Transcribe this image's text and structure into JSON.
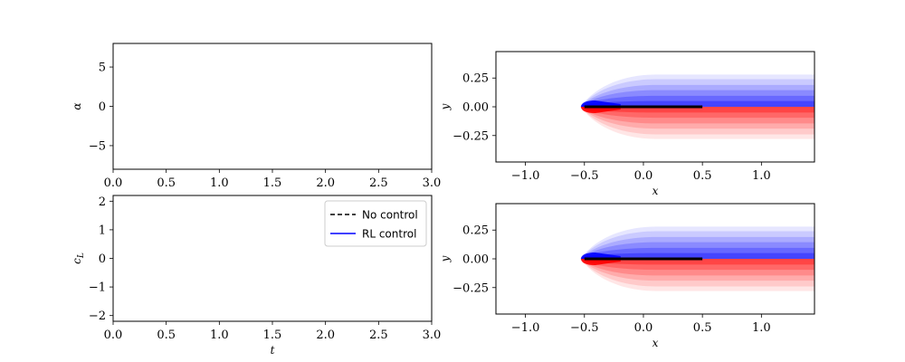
{
  "chart_data": [
    {
      "id": "alpha_plot",
      "type": "line",
      "xlabel": "",
      "ylabel": "α",
      "xlim": [
        0,
        3
      ],
      "ylim": [
        -8,
        8
      ],
      "xticks": [
        0,
        0.5,
        1,
        1.5,
        2,
        2.5,
        3
      ],
      "xtick_labels": [
        "0.0",
        "0.5",
        "1.0",
        "1.5",
        "2.0",
        "2.5",
        "3.0"
      ],
      "yticks": [
        5,
        0,
        -5
      ],
      "ytick_labels": [
        "5",
        "0",
        "−5"
      ],
      "series": []
    },
    {
      "id": "cl_plot",
      "type": "line",
      "xlabel": "t",
      "ylabel": "c_L",
      "xlim": [
        0,
        3
      ],
      "ylim": [
        -2.2,
        2.2
      ],
      "xticks": [
        0,
        0.5,
        1,
        1.5,
        2,
        2.5,
        3
      ],
      "xtick_labels": [
        "0.0",
        "0.5",
        "1.0",
        "1.5",
        "2.0",
        "2.5",
        "3.0"
      ],
      "yticks": [
        2,
        1,
        0,
        -1,
        -2
      ],
      "ytick_labels": [
        "2",
        "1",
        "0",
        "−1",
        "−2"
      ],
      "legend": {
        "location": "upper-right",
        "entries": [
          {
            "label": "No control",
            "color": "#000000",
            "style": "dashed"
          },
          {
            "label": "RL control",
            "color": "#0000ff",
            "style": "solid"
          }
        ]
      },
      "series": []
    },
    {
      "id": "field_no_control",
      "type": "heatmap",
      "xlabel": "x",
      "ylabel": "y",
      "xlim": [
        -1.25,
        1.45
      ],
      "ylim": [
        -0.48,
        0.48
      ],
      "xticks": [
        -1,
        -0.5,
        0,
        0.5,
        1
      ],
      "xtick_labels": [
        "−1.0",
        "−0.5",
        "0.0",
        "0.5",
        "1.0"
      ],
      "yticks": [
        0.25,
        0,
        -0.25
      ],
      "ytick_labels": [
        "0.25",
        "0.00",
        "−0.25"
      ],
      "plate": {
        "x_start": -0.5,
        "x_end": 0.5,
        "y": 0,
        "color": "#000000"
      },
      "colormap": [
        "#0000ff",
        "#ffffff",
        "#ff0000"
      ]
    },
    {
      "id": "field_rl_control",
      "type": "heatmap",
      "xlabel": "x",
      "ylabel": "y",
      "xlim": [
        -1.25,
        1.45
      ],
      "ylim": [
        -0.48,
        0.48
      ],
      "xticks": [
        -1,
        -0.5,
        0,
        0.5,
        1
      ],
      "xtick_labels": [
        "−1.0",
        "−0.5",
        "0.0",
        "0.5",
        "1.0"
      ],
      "yticks": [
        0.25,
        0,
        -0.25
      ],
      "ytick_labels": [
        "0.25",
        "0.00",
        "−0.25"
      ],
      "plate": {
        "x_start": -0.5,
        "x_end": 0.5,
        "y": 0,
        "color": "#000000"
      },
      "colormap": [
        "#0000ff",
        "#ffffff",
        "#ff0000"
      ]
    }
  ]
}
